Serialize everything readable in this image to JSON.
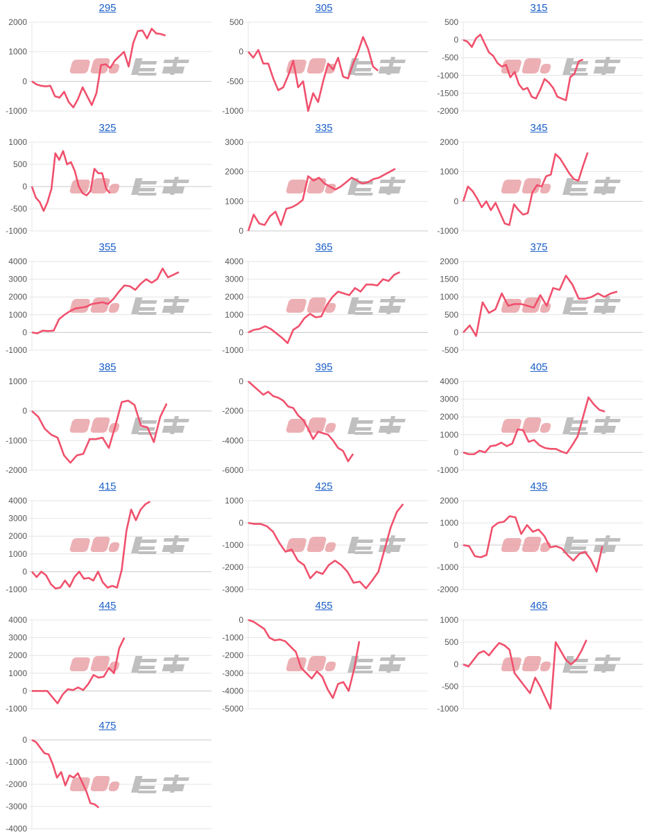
{
  "watermark": "みんレポ",
  "colors": {
    "line": "#f0506c",
    "grid": "#e4e4e4",
    "zero": "#c8c8c8",
    "title": "#1a5fc8",
    "wm_pink": "#e9a3a8",
    "wm_grey": "#b5b5b5"
  },
  "chart_data": [
    {
      "type": "line",
      "title": "295",
      "ylim": [
        -1000,
        2000
      ],
      "yticks": [
        2000,
        1000,
        0,
        -1000
      ],
      "x_max": 39,
      "values": [
        0,
        -100,
        -150,
        -170,
        -150,
        -500,
        -550,
        -350,
        -700,
        -880,
        -600,
        -200,
        -500,
        -800,
        -400,
        550,
        580,
        450,
        700,
        850,
        1000,
        500,
        1300,
        1700,
        1720,
        1450,
        1780,
        1620,
        1600,
        1550
      ]
    },
    {
      "type": "line",
      "title": "305",
      "ylim": [
        -1000,
        500
      ],
      "yticks": [
        500,
        0,
        -500,
        -1000
      ],
      "x_max": 36,
      "values": [
        0,
        -100,
        30,
        -200,
        -200,
        -450,
        -650,
        -600,
        -400,
        -150,
        -600,
        -500,
        -1000,
        -700,
        -850,
        -500,
        -200,
        -300,
        -100,
        -420,
        -450,
        -200,
        0,
        250,
        50,
        -250,
        -320
      ]
    },
    {
      "type": "line",
      "title": "315",
      "ylim": [
        -2000,
        500
      ],
      "yticks": [
        500,
        0,
        -500,
        -1000,
        -1500,
        -2000
      ],
      "x_max": 42,
      "values": [
        0,
        -50,
        -200,
        50,
        150,
        -100,
        -350,
        -450,
        -650,
        -750,
        -700,
        -1050,
        -900,
        -1250,
        -1400,
        -1350,
        -1600,
        -1650,
        -1400,
        -1100,
        -1200,
        -1350,
        -1600,
        -1650,
        -1700,
        -1050,
        -950,
        -600,
        -550
      ]
    },
    {
      "type": "line",
      "title": "325",
      "ylim": [
        -1000,
        1000
      ],
      "yticks": [
        1000,
        500,
        0,
        -500,
        -1000
      ],
      "x_max": 46,
      "values": [
        0,
        -250,
        -350,
        -550,
        -350,
        -50,
        750,
        600,
        800,
        500,
        550,
        350,
        0,
        -150,
        -200,
        -100,
        400,
        300,
        300,
        -50,
        -150
      ]
    },
    {
      "type": "line",
      "title": "335",
      "ylim": [
        0,
        3000
      ],
      "yticks": [
        3000,
        2000,
        1000,
        0
      ],
      "x_max": 33,
      "values": [
        0,
        550,
        250,
        200,
        500,
        650,
        200,
        750,
        800,
        900,
        1050,
        1850,
        1700,
        1800,
        1600,
        1500,
        1400,
        1500,
        1650,
        1800,
        1700,
        1600,
        1650,
        1750,
        1800,
        1900,
        2000,
        2100
      ]
    },
    {
      "type": "line",
      "title": "345",
      "ylim": [
        -1000,
        2000
      ],
      "yticks": [
        2000,
        1000,
        0,
        -1000
      ],
      "x_max": 39,
      "values": [
        0,
        500,
        350,
        100,
        -200,
        0,
        -300,
        -50,
        -400,
        -750,
        -800,
        -100,
        -300,
        -450,
        -400,
        300,
        550,
        500,
        850,
        900,
        1600,
        1450,
        1200,
        950,
        750,
        700,
        1200,
        1650
      ]
    },
    {
      "type": "line",
      "title": "355",
      "ylim": [
        -1000,
        4000
      ],
      "yticks": [
        4000,
        3000,
        2000,
        1000,
        0,
        -1000
      ],
      "x_max": 33,
      "values": [
        0,
        -50,
        100,
        80,
        100,
        750,
        1000,
        1200,
        1350,
        1400,
        1450,
        1600,
        1650,
        1700,
        1600,
        1900,
        2300,
        2650,
        2600,
        2400,
        2750,
        3000,
        2800,
        3000,
        3600,
        3100,
        3250,
        3400
      ]
    },
    {
      "type": "line",
      "title": "365",
      "ylim": [
        -1000,
        4000
      ],
      "yticks": [
        4000,
        3000,
        2000,
        1000,
        0,
        -1000
      ],
      "x_max": 32,
      "values": [
        0,
        150,
        200,
        350,
        200,
        -50,
        -300,
        -600,
        150,
        350,
        800,
        1050,
        850,
        900,
        1550,
        2000,
        2300,
        2200,
        2100,
        2500,
        2300,
        2700,
        2700,
        2650,
        3000,
        2900,
        3250,
        3400
      ]
    },
    {
      "type": "line",
      "title": "375",
      "ylim": [
        -500,
        2000
      ],
      "yticks": [
        2000,
        1500,
        1000,
        500,
        0,
        -500
      ],
      "x_max": 28,
      "values": [
        0,
        200,
        -100,
        850,
        550,
        650,
        1100,
        750,
        800,
        800,
        750,
        700,
        1050,
        750,
        1250,
        1200,
        1600,
        1350,
        950,
        950,
        1000,
        1100,
        1000,
        1100,
        1150
      ]
    },
    {
      "type": "line",
      "title": "385",
      "ylim": [
        -2000,
        1000
      ],
      "yticks": [
        1000,
        0,
        -1000,
        -2000
      ],
      "x_max": 28,
      "values": [
        0,
        -200,
        -600,
        -800,
        -900,
        -1500,
        -1750,
        -1500,
        -1450,
        -950,
        -950,
        -900,
        -1250,
        -500,
        300,
        350,
        200,
        -500,
        -550,
        -1050,
        -200,
        250
      ]
    },
    {
      "type": "line",
      "title": "395",
      "ylim": [
        -6000,
        0
      ],
      "yticks": [
        0,
        -2000,
        -4000,
        -6000
      ],
      "x_max": 36,
      "values": [
        0,
        -300,
        -600,
        -900,
        -700,
        -1000,
        -1100,
        -1300,
        -1700,
        -1800,
        -2300,
        -2600,
        -3200,
        -3900,
        -3400,
        -3500,
        -3600,
        -4000,
        -4500,
        -4700,
        -5400,
        -4900
      ]
    },
    {
      "type": "line",
      "title": "405",
      "ylim": [
        -1000,
        4000
      ],
      "yticks": [
        4000,
        3000,
        2000,
        1000,
        0,
        -1000
      ],
      "x_max": 33,
      "values": [
        0,
        -100,
        -100,
        100,
        0,
        350,
        400,
        550,
        350,
        500,
        1300,
        1250,
        600,
        700,
        400,
        250,
        200,
        200,
        50,
        -50,
        400,
        900,
        2000,
        3100,
        2700,
        2400,
        2300
      ]
    },
    {
      "type": "line",
      "title": "415",
      "ylim": [
        -1000,
        4000
      ],
      "yticks": [
        4000,
        3000,
        2000,
        1000,
        0,
        -1000
      ],
      "x_max": 38,
      "values": [
        0,
        -300,
        0,
        -200,
        -700,
        -950,
        -900,
        -500,
        -850,
        -300,
        0,
        -400,
        -350,
        -500,
        0,
        -600,
        -900,
        -800,
        -900,
        100,
        2300,
        3500,
        2900,
        3500,
        3800,
        3950
      ]
    },
    {
      "type": "line",
      "title": "425",
      "ylim": [
        -3000,
        1000
      ],
      "yticks": [
        1000,
        0,
        -1000,
        -2000,
        -3000
      ],
      "x_max": 29,
      "values": [
        0,
        -50,
        -50,
        -150,
        -400,
        -900,
        -1300,
        -1200,
        -1700,
        -1900,
        -2500,
        -2200,
        -2300,
        -1900,
        -1700,
        -1900,
        -2200,
        -2700,
        -2650,
        -2950,
        -2600,
        -2200,
        -1200,
        -200,
        500,
        850
      ]
    },
    {
      "type": "line",
      "title": "435",
      "ylim": [
        -2000,
        2000
      ],
      "yticks": [
        2000,
        1000,
        0,
        -1000,
        -2000
      ],
      "x_max": 31,
      "values": [
        0,
        -50,
        -500,
        -550,
        -450,
        800,
        1000,
        1050,
        1300,
        1250,
        500,
        900,
        600,
        700,
        400,
        -100,
        -50,
        -150,
        -450,
        -700,
        -400,
        -300,
        -650,
        -1200,
        -50
      ]
    },
    {
      "type": "line",
      "title": "445",
      "ylim": [
        -1000,
        4000
      ],
      "yticks": [
        4000,
        3000,
        2000,
        1000,
        0,
        -1000
      ],
      "x_max": 35,
      "values": [
        0,
        0,
        0,
        0,
        -350,
        -700,
        -200,
        100,
        50,
        200,
        50,
        400,
        900,
        750,
        800,
        1300,
        1000,
        2400,
        3000
      ]
    },
    {
      "type": "line",
      "title": "455",
      "ylim": [
        -5000,
        0
      ],
      "yticks": [
        0,
        -1000,
        -2000,
        -3000,
        -4000,
        -5000
      ],
      "x_max": 34,
      "values": [
        0,
        -100,
        -300,
        -500,
        -1000,
        -1150,
        -1100,
        -1200,
        -1500,
        -1800,
        -2700,
        -3000,
        -3300,
        -2900,
        -3200,
        -3900,
        -4400,
        -3600,
        -3500,
        -4000,
        -2800,
        -1200
      ]
    },
    {
      "type": "line",
      "title": "465",
      "ylim": [
        -1000,
        1000
      ],
      "yticks": [
        1000,
        500,
        0,
        -500,
        -1000
      ],
      "x_max": 35,
      "values": [
        0,
        -50,
        100,
        250,
        300,
        200,
        350,
        480,
        430,
        330,
        -200,
        -350,
        -500,
        -650,
        -300,
        -500,
        -750,
        -1000,
        500,
        300,
        100,
        0,
        100,
        300,
        550
      ]
    },
    {
      "type": "line",
      "title": "475",
      "ylim": [
        -4000,
        0
      ],
      "yticks": [
        0,
        -1000,
        -2000,
        -3000,
        -4000
      ],
      "x_max": 43,
      "values": [
        0,
        -100,
        -350,
        -600,
        -650,
        -1100,
        -1700,
        -1450,
        -2050,
        -1600,
        -1700,
        -1500,
        -1900,
        -2300,
        -2850,
        -2900,
        -3050
      ]
    }
  ]
}
